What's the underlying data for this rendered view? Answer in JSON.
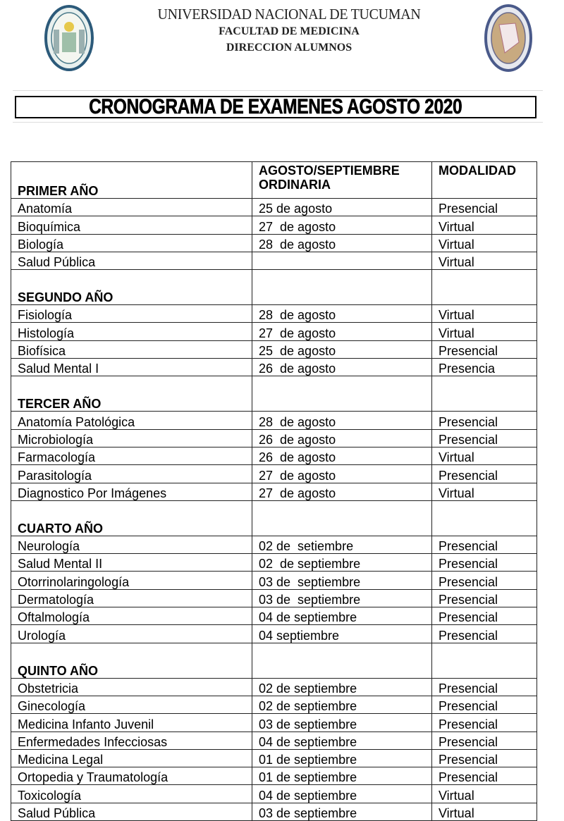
{
  "header": {
    "university": "UNIVERSIDAD NACIONAL DE TUCUMAN",
    "faculty": "FACULTAD DE MEDICINA",
    "department": "DIRECCION ALUMNOS"
  },
  "title": "CRONOGRAMA DE EXAMENES AGOSTO 2020",
  "table": {
    "col2_header_line1": "AGOSTO/SEPTIEMBRE",
    "col2_header_line2": "ORDINARIA",
    "col3_header": "MODALIDAD",
    "sections": [
      {
        "name": "PRIMER AÑO",
        "rows": [
          [
            "Anatomía",
            "25 de agosto",
            "Presencial"
          ],
          [
            "Bioquímica",
            "27  de agosto",
            "Virtual"
          ],
          [
            "Biología",
            "28  de agosto",
            "Virtual"
          ],
          [
            "Salud Pública",
            "",
            "Virtual"
          ]
        ]
      },
      {
        "name": "SEGUNDO AÑO",
        "rows": [
          [
            "Fisiología",
            "28  de agosto",
            "Virtual"
          ],
          [
            "Histología",
            "27  de agosto",
            "Virtual"
          ],
          [
            "Biofísica",
            "25  de agosto",
            "Presencial"
          ],
          [
            "Salud Mental I",
            "26  de agosto",
            "Presencia"
          ]
        ]
      },
      {
        "name": "TERCER AÑO",
        "rows": [
          [
            "Anatomía Patológica",
            "28  de agosto",
            "Presencial"
          ],
          [
            "Microbiología",
            "26  de agosto",
            "Presencial"
          ],
          [
            "Farmacología",
            "26  de agosto",
            "Virtual"
          ],
          [
            "Parasitología",
            "27  de agosto",
            "Presencial"
          ],
          [
            "Diagnostico Por Imágenes",
            "27  de agosto",
            "Virtual"
          ]
        ]
      },
      {
        "name": "CUARTO AÑO",
        "rows": [
          [
            "Neurología",
            "02 de  setiembre",
            "Presencial"
          ],
          [
            "Salud Mental II",
            "02  de septiembre",
            "Presencial"
          ],
          [
            "Otorrinolaringología",
            "03 de  septiembre",
            "Presencial"
          ],
          [
            "Dermatología",
            "03 de  septiembre",
            "Presencial"
          ],
          [
            "Oftalmología",
            "04 de septiembre",
            "Presencial"
          ],
          [
            "Urología",
            "04 septiembre",
            "Presencial"
          ]
        ]
      },
      {
        "name": "QUINTO AÑO",
        "rows": [
          [
            "Obstetricia",
            "02 de septiembre",
            "Presencial"
          ],
          [
            "Ginecología",
            "02 de septiembre",
            "Presencial"
          ],
          [
            "Medicina Infanto Juvenil",
            "03 de septiembre",
            "Presencial"
          ],
          [
            "Enfermedades Infecciosas",
            "04 de septiembre",
            "Presencial"
          ],
          [
            "Medicina Legal",
            "01 de septiembre",
            "Presencial"
          ],
          [
            "Ortopedia y Traumatología",
            "01 de septiembre",
            "Presencial"
          ],
          [
            "Toxicología",
            "04 de septiembre",
            "Virtual"
          ],
          [
            "Salud Pública",
            "03 de septiembre",
            "Virtual"
          ]
        ]
      }
    ]
  }
}
